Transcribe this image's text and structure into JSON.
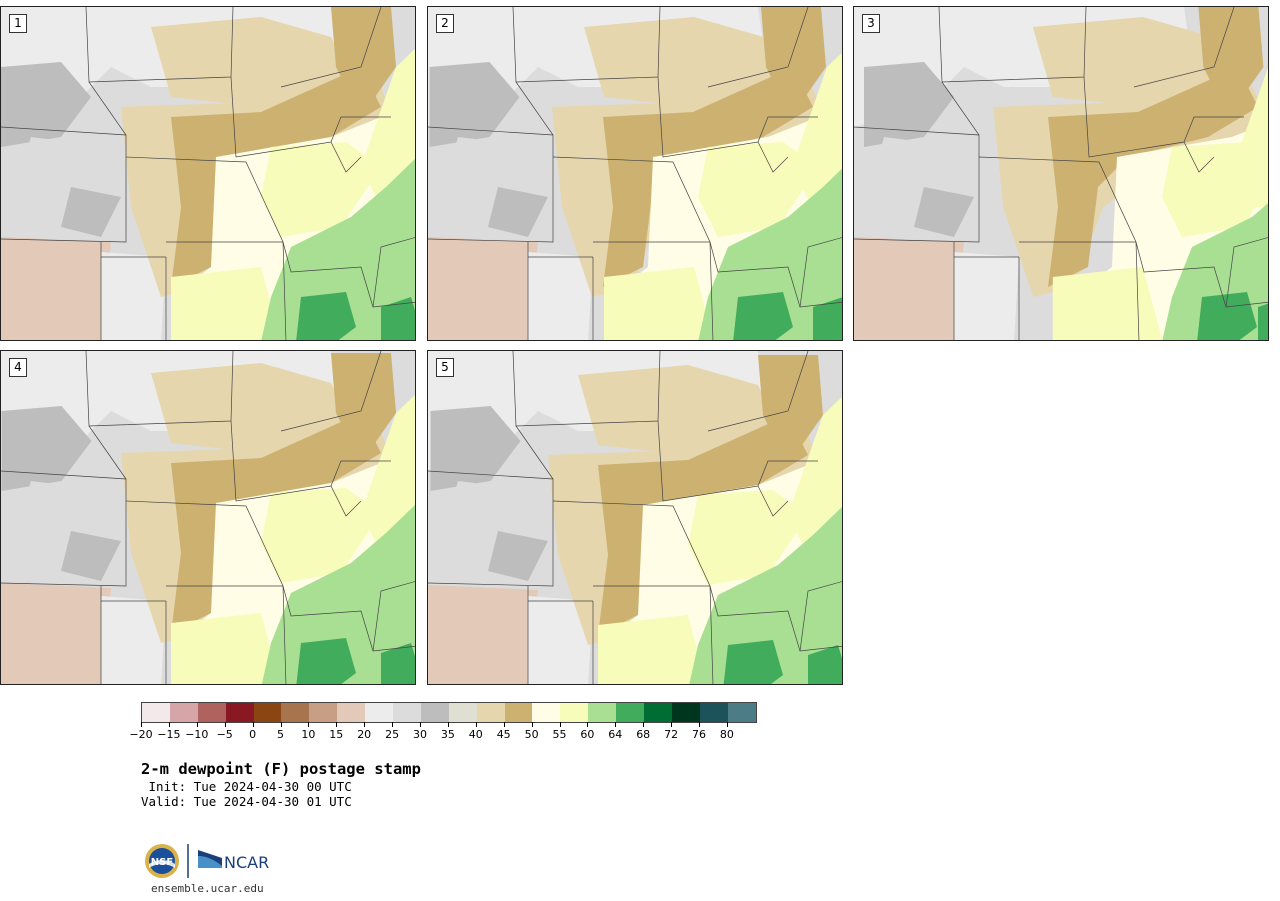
{
  "title": "2-m dewpoint (F) postage stamp",
  "init_line": " Init: Tue 2024-04-30 00 UTC",
  "valid_line": "Valid: Tue 2024-04-30 01 UTC",
  "url": "ensemble.ucar.edu",
  "logos": {
    "nsf": "NSF",
    "ncar": "NCAR"
  },
  "panels": [
    {
      "label": "1",
      "variant": 0
    },
    {
      "label": "2",
      "variant": 1
    },
    {
      "label": "3",
      "variant": 2
    },
    {
      "label": "4",
      "variant": 3
    },
    {
      "label": "5",
      "variant": 4
    }
  ],
  "colorbar": {
    "colors": [
      "#f4e9ea",
      "#d6a5a8",
      "#b0625f",
      "#8a1823",
      "#8b4513",
      "#a8744e",
      "#c89e84",
      "#e3c9b8",
      "#ececec",
      "#dcdcdc",
      "#bdbdbd",
      "#e0e0d2",
      "#e6d6ad",
      "#ccb171",
      "#fffde6",
      "#f7fcbb",
      "#a8df92",
      "#41ad5c",
      "#006d33",
      "#00361e",
      "#1c525a",
      "#4c7d86"
    ],
    "ticks": [
      "−20",
      "−15",
      "−10",
      "−5",
      "0",
      "5",
      "10",
      "15",
      "20",
      "25",
      "30",
      "35",
      "40",
      "45",
      "50",
      "55",
      "60",
      "64",
      "68",
      "72",
      "76",
      "80"
    ]
  },
  "map_colors": {
    "gray_light": "#ececec",
    "gray_mid": "#dcdcdc",
    "gray_dark": "#bdbdbd",
    "pinkish": "#e3c9b8",
    "tan_light": "#e6d6ad",
    "tan": "#ccb171",
    "cream": "#fffde6",
    "yellow": "#f7fcbb",
    "green_light": "#a8df92",
    "green": "#41ad5c"
  }
}
